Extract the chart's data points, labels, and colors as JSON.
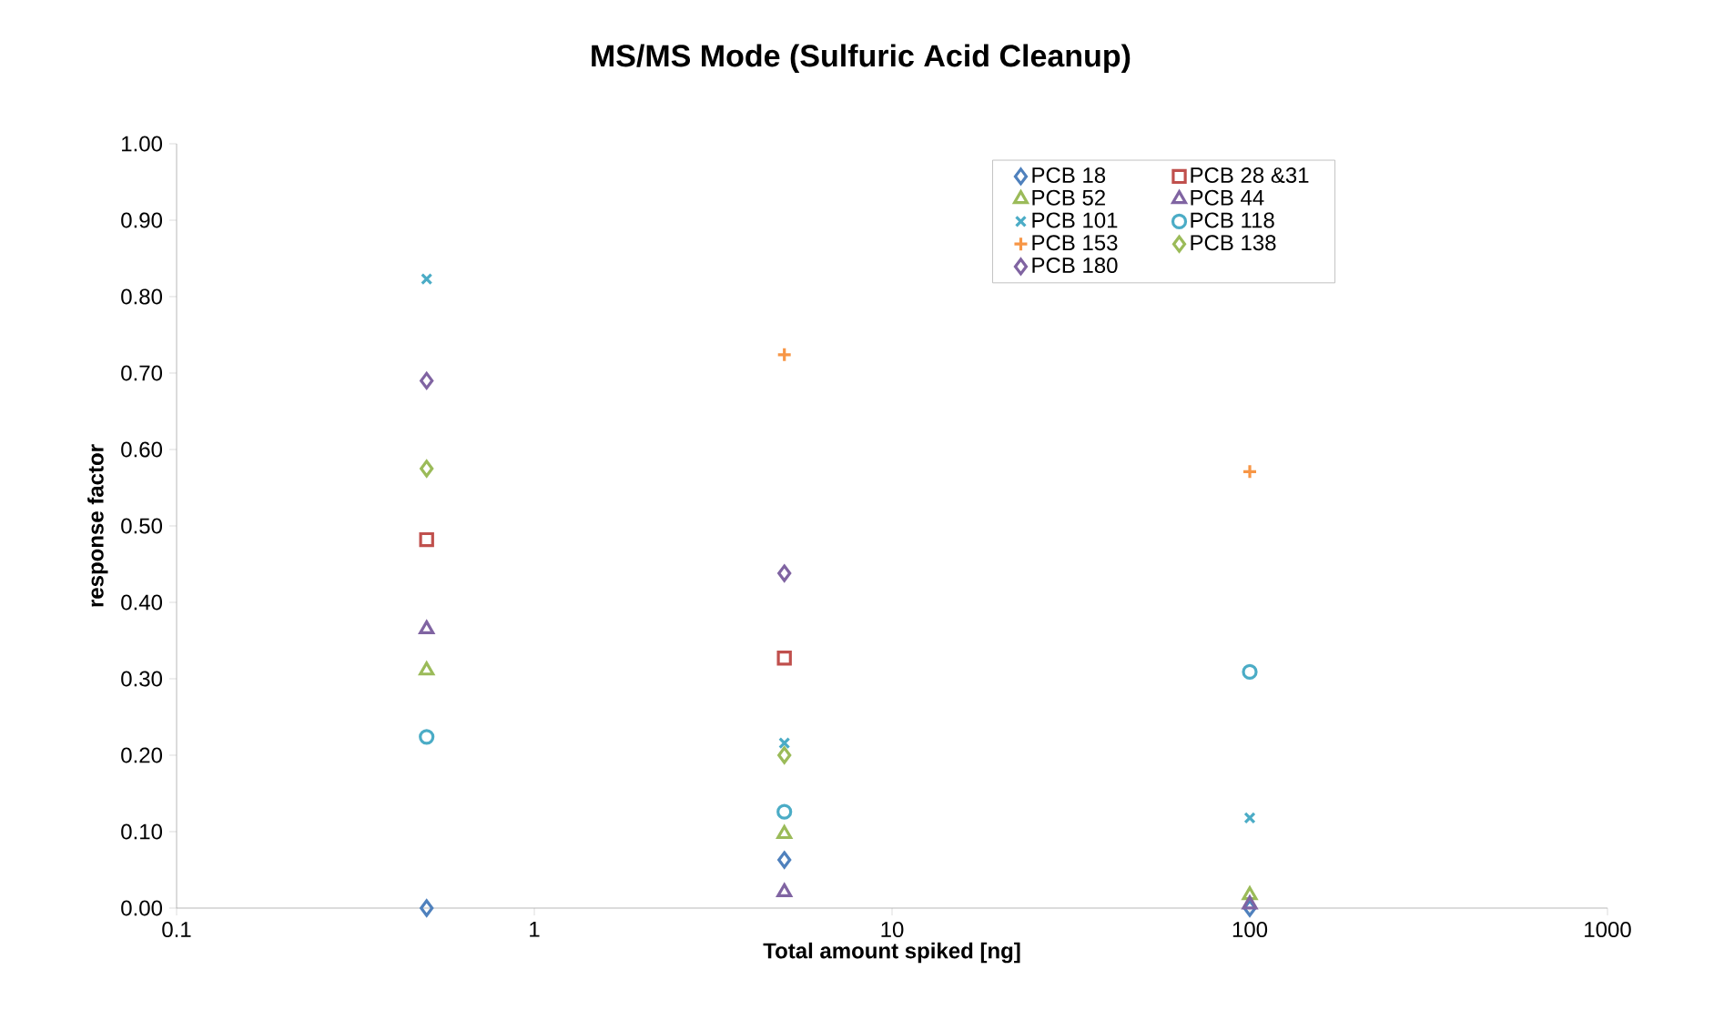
{
  "chart_data": {
    "type": "scatter",
    "title": "MS/MS Mode (Sulfuric Acid Cleanup)",
    "xlabel": "Total amount spiked [ng]",
    "ylabel": "response factor",
    "x": [
      0.5,
      5,
      100
    ],
    "log": "x",
    "xlim": [
      0.1,
      1000
    ],
    "xticks": [
      0.1,
      1,
      10,
      100,
      1000
    ],
    "ylim": [
      0,
      1
    ],
    "yticks": [
      {
        "value": 0,
        "label": "0.00"
      },
      {
        "value": 0.1,
        "label": "0.10"
      },
      {
        "value": 0.2,
        "label": "0.20"
      },
      {
        "value": 0.3,
        "label": "0.30"
      },
      {
        "value": 0.4,
        "label": "0.40"
      },
      {
        "value": 0.5,
        "label": "0.50"
      },
      {
        "value": 0.6,
        "label": "0.60"
      },
      {
        "value": 0.7,
        "label": "0.70"
      },
      {
        "value": 0.8,
        "label": "0.80"
      },
      {
        "value": 0.9,
        "label": "0.90"
      },
      {
        "value": 1,
        "label": "1.00"
      }
    ],
    "grid": false,
    "legend": "top right",
    "series": [
      {
        "name": "PCB 18",
        "color": "#4f81bd",
        "marker": "diamond",
        "values": [
          0.0,
          0.063,
          0.0
        ]
      },
      {
        "name": "PCB 28 &31",
        "color": "#c0504d",
        "marker": "square",
        "values": [
          0.482,
          0.327,
          null
        ]
      },
      {
        "name": "PCB 52",
        "color": "#9bbb59",
        "marker": "triangle",
        "values": [
          0.311,
          0.097,
          0.017
        ]
      },
      {
        "name": "PCB 44",
        "color": "#8064a2",
        "marker": "triangle",
        "values": [
          0.365,
          0.021,
          0.005
        ]
      },
      {
        "name": "PCB 101",
        "color": "#4bacc6",
        "marker": "cross",
        "values": [
          0.823,
          0.216,
          0.118
        ]
      },
      {
        "name": "PCB 118",
        "color": "#4bacc6",
        "marker": "circle",
        "values": [
          0.224,
          0.126,
          0.309
        ]
      },
      {
        "name": "PCB 153",
        "color": "#f79646",
        "marker": "plus",
        "values": [
          null,
          0.724,
          0.571
        ]
      },
      {
        "name": "PCB 138",
        "color": "#9bbb59",
        "marker": "diamond",
        "values": [
          0.575,
          0.2,
          null
        ]
      },
      {
        "name": "PCB 180",
        "color": "#8064a2",
        "marker": "diamond",
        "values": [
          0.69,
          0.438,
          null
        ]
      }
    ]
  }
}
